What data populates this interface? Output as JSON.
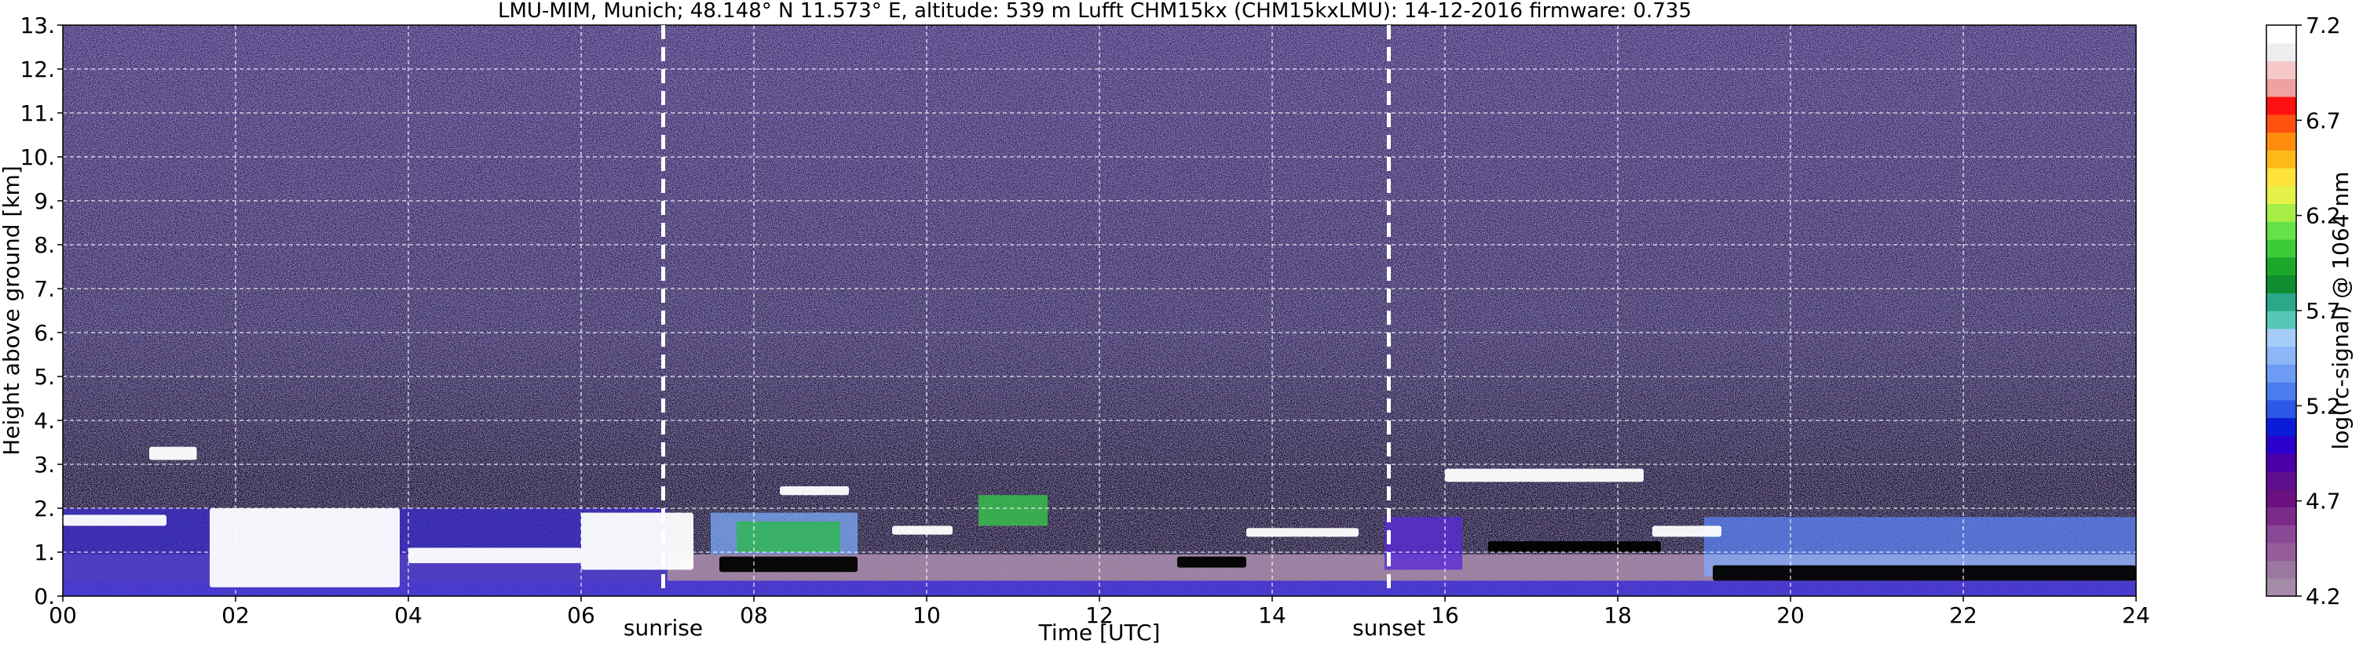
{
  "chart_data": {
    "type": "heatmap",
    "title": "LMU-MIM, Munich; 48.148° N 11.573° E, altitude: 539 m    Lufft CHM15kx (CHM15kxLMU): 14-12-2016    firmware: 0.735",
    "xlabel": "Time [UTC]",
    "ylabel": "Height above ground [km]",
    "xlim": [
      0,
      24
    ],
    "ylim": [
      0,
      13
    ],
    "x_ticks": [
      "00",
      "02",
      "04",
      "06",
      "08",
      "10",
      "12",
      "14",
      "16",
      "18",
      "20",
      "22",
      "24"
    ],
    "y_ticks": [
      "0.",
      "1.",
      "2.",
      "3.",
      "4.",
      "5.",
      "6.",
      "7.",
      "8.",
      "9.",
      "10.",
      "11.",
      "12.",
      "13."
    ],
    "grid": true,
    "annotations": [
      {
        "label": "sunrise",
        "x": 6.95
      },
      {
        "label": "sunset",
        "x": 15.35
      }
    ],
    "colorbar": {
      "label": "log(rc-signal) @ 1064 nm",
      "range": [
        4.2,
        7.2
      ],
      "ticks": [
        "4.2",
        "4.7",
        "5.2",
        "5.7",
        "6.2",
        "6.7",
        "7.2"
      ],
      "colors": [
        "#a48ca8",
        "#9a78a0",
        "#955c9a",
        "#8a4796",
        "#7a2a88",
        "#6a1080",
        "#5e0d8e",
        "#4a00a8",
        "#2a00cc",
        "#0a1cd8",
        "#2a58e8",
        "#4a7ef0",
        "#6e9cf4",
        "#8cb6f8",
        "#a6ccfa",
        "#56c8b6",
        "#2aa88a",
        "#108c30",
        "#1aa82a",
        "#3ccc3a",
        "#66e248",
        "#a6ee46",
        "#e6f24a",
        "#ffe23a",
        "#ffb81a",
        "#ff8c0c",
        "#ff5010",
        "#ff1010",
        "#f0a0a0",
        "#f6c8c8",
        "#eeeeee",
        "#ffffff"
      ]
    },
    "layers": [
      {
        "kind": "boundary",
        "t0": 0,
        "t1": 24,
        "h0": 0,
        "h1": 0.35,
        "color": "#4a3ad8"
      },
      {
        "kind": "boundary",
        "t0": 0,
        "t1": 24,
        "h0": 0.35,
        "h1": 0.95,
        "color": "#a58aaa"
      },
      {
        "kind": "aerosol",
        "t0": 0,
        "t1": 7.0,
        "h0": 0.35,
        "h1": 2.0,
        "color": "#3a2ac8"
      },
      {
        "kind": "aerosol",
        "t0": 7.5,
        "t1": 9.2,
        "h0": 0.95,
        "h1": 1.9,
        "color": "#7aa6f4"
      },
      {
        "kind": "aerosol",
        "t0": 7.8,
        "t1": 9.0,
        "h0": 1.0,
        "h1": 1.7,
        "color": "#2ab84a"
      },
      {
        "kind": "aerosol",
        "t0": 10.6,
        "t1": 11.4,
        "h0": 1.6,
        "h1": 2.3,
        "color": "#36c84a"
      },
      {
        "kind": "aerosol",
        "t0": 15.3,
        "t1": 16.2,
        "h0": 0.6,
        "h1": 1.8,
        "color": "#5a2ad8"
      },
      {
        "kind": "aerosol",
        "t0": 19.0,
        "t1": 24.0,
        "h0": 0.95,
        "h1": 1.8,
        "color": "#5a80f0"
      },
      {
        "kind": "aerosol",
        "t0": 19.0,
        "t1": 24.0,
        "h0": 0.45,
        "h1": 0.95,
        "color": "#82a8f6"
      },
      {
        "kind": "cloud",
        "t0": 0.0,
        "t1": 1.2,
        "h0": 1.6,
        "h1": 1.85,
        "color": "#ffffff"
      },
      {
        "kind": "cloud",
        "t0": 1.0,
        "t1": 1.55,
        "h0": 3.1,
        "h1": 3.4,
        "color": "#ffffff"
      },
      {
        "kind": "cloud",
        "t0": 1.7,
        "t1": 3.9,
        "h0": 0.2,
        "h1": 2.0,
        "color": "#ffffff"
      },
      {
        "kind": "cloud",
        "t0": 4.0,
        "t1": 6.0,
        "h0": 0.75,
        "h1": 1.1,
        "color": "#ffffff"
      },
      {
        "kind": "cloud",
        "t0": 6.0,
        "t1": 7.3,
        "h0": 0.6,
        "h1": 1.9,
        "color": "#ffffff"
      },
      {
        "kind": "cloud",
        "t0": 7.6,
        "t1": 9.2,
        "h0": 0.55,
        "h1": 0.9,
        "color": "#000000"
      },
      {
        "kind": "cloud",
        "t0": 8.3,
        "t1": 9.1,
        "h0": 2.3,
        "h1": 2.5,
        "color": "#ffffff"
      },
      {
        "kind": "cloud",
        "t0": 9.6,
        "t1": 10.3,
        "h0": 1.4,
        "h1": 1.6,
        "color": "#ffffff"
      },
      {
        "kind": "cloud",
        "t0": 12.9,
        "t1": 13.7,
        "h0": 0.65,
        "h1": 0.9,
        "color": "#000000"
      },
      {
        "kind": "cloud",
        "t0": 13.7,
        "t1": 15.0,
        "h0": 1.35,
        "h1": 1.55,
        "color": "#ffffff"
      },
      {
        "kind": "cloud",
        "t0": 16.0,
        "t1": 18.3,
        "h0": 2.6,
        "h1": 2.9,
        "color": "#ffffff"
      },
      {
        "kind": "cloud",
        "t0": 16.5,
        "t1": 18.5,
        "h0": 1.0,
        "h1": 1.25,
        "color": "#000000"
      },
      {
        "kind": "cloud",
        "t0": 19.1,
        "t1": 24.0,
        "h0": 0.35,
        "h1": 0.7,
        "color": "#000000"
      },
      {
        "kind": "cloud",
        "t0": 18.4,
        "t1": 19.2,
        "h0": 1.35,
        "h1": 1.6,
        "color": "#ffffff"
      }
    ]
  }
}
